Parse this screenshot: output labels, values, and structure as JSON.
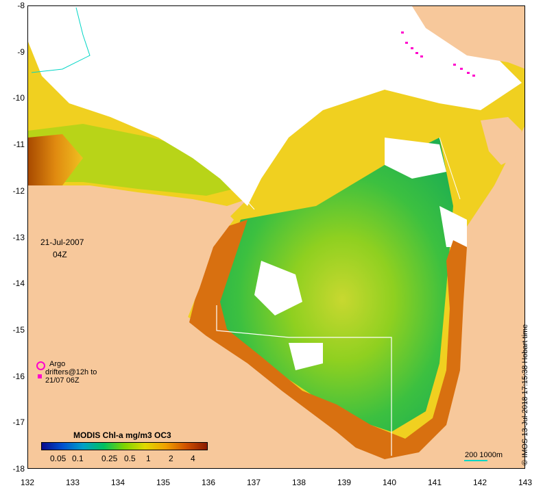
{
  "map": {
    "date_label": "21-Jul-2007",
    "time_label": "04Z",
    "timestamp": "© IMOS 13-Jul-2018 17:15:38 Hobart time",
    "lon_ticks": [
      "132",
      "133",
      "134",
      "135",
      "136",
      "137",
      "138",
      "139",
      "140",
      "141",
      "142",
      "143"
    ],
    "lat_ticks": [
      "-8",
      "-9",
      "-10",
      "-11",
      "-12",
      "-13",
      "-14",
      "-15",
      "-16",
      "-17",
      "-18"
    ],
    "lon_range": [
      132,
      143
    ],
    "lat_range": [
      -18,
      -8
    ],
    "colors": {
      "land": "#f7c89b",
      "cloud": "#ffffff",
      "argo": "#ff00cc",
      "drifter": "#ff00cc",
      "isobath_200": "#ffffff",
      "isobath_1000": "#00d5c5"
    }
  },
  "legend": {
    "argo_label": "Argo",
    "drifters_label_1": "drifters@12h to",
    "drifters_label_2": "21/07 06Z"
  },
  "colorbar": {
    "title": "MODIS Chl-a mg/m3 OC3",
    "labels": [
      "0.05",
      "0.1",
      "0.25",
      "0.5",
      "1",
      "2",
      "4"
    ],
    "gradient": [
      "#0a0a8c",
      "#0050d0",
      "#00a0c8",
      "#00c060",
      "#7fd400",
      "#e0d800",
      "#f0a000",
      "#d05000",
      "#8a1a00"
    ]
  },
  "scale": {
    "label": "200 1000m"
  }
}
